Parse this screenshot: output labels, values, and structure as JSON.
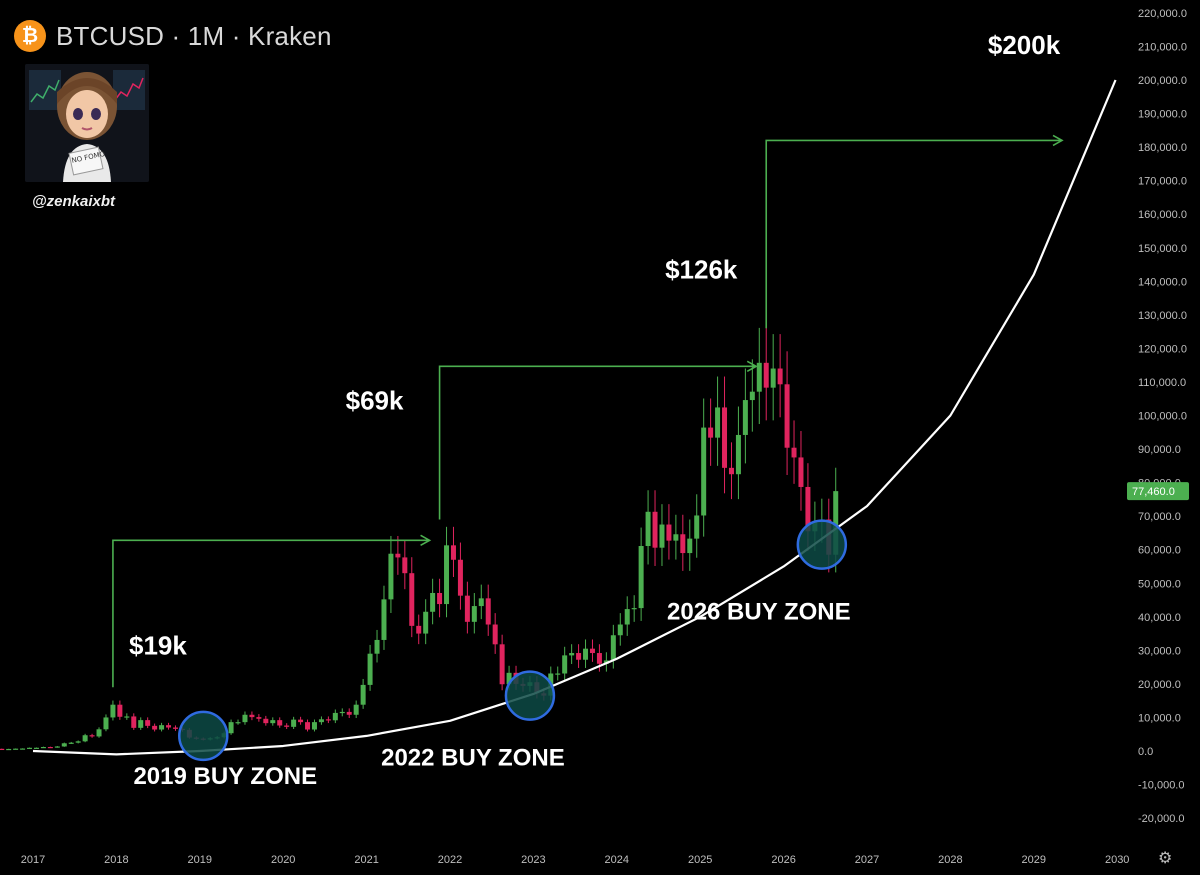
{
  "header": {
    "title": "BTCUSD · 1M · Kraken",
    "logo_letter": "₿"
  },
  "author": {
    "handle": "@zenkaixbt",
    "avatar_sign": "NO FOMO"
  },
  "colors": {
    "up": "#4caf50",
    "down": "#e0245e",
    "curve": "#ffffff",
    "arrow": "#4caf50",
    "zone_fill": "#0d4a45",
    "zone_stroke": "#2f6be0",
    "price_tag": "#4caf50"
  },
  "chart_data": {
    "type": "candlestick",
    "title": "BTCUSD · 1M · Kraken",
    "y_axis": {
      "min": -20000,
      "max": 220000,
      "step": 10000,
      "tick_labels": [
        "-20,000.0",
        "-10,000.0",
        "0.0",
        "10,000.0",
        "20,000.0",
        "30,000.0",
        "40,000.0",
        "50,000.0",
        "60,000.0",
        "70,000.0",
        "80,000.0",
        "90,000.0",
        "100,000.0",
        "110,000.0",
        "120,000.0",
        "130,000.0",
        "140,000.0",
        "150,000.0",
        "160,000.0",
        "170,000.0",
        "180,000.0",
        "190,000.0",
        "200,000.0",
        "210,000.0",
        "220,000.0"
      ]
    },
    "x_axis": {
      "min": 2017,
      "max": 2030,
      "tick_labels": [
        "2017",
        "2018",
        "2019",
        "2020",
        "2021",
        "2022",
        "2023",
        "2024",
        "2025",
        "2026",
        "2027",
        "2028",
        "2029",
        "2030"
      ]
    },
    "current_price": {
      "value": 77460,
      "label": "77,460.0"
    },
    "start": "2016-01",
    "closes": [
      430,
      440,
      420,
      450,
      530,
      670,
      650,
      575,
      610,
      700,
      740,
      960,
      970,
      1190,
      1080,
      1350,
      2300,
      2480,
      2880,
      4700,
      4340,
      6470,
      10000,
      13800,
      10200,
      10300,
      6900,
      9200,
      7500,
      6400,
      7700,
      7000,
      6600,
      6300,
      4000,
      3700,
      3450,
      3800,
      4100,
      5300,
      8600,
      8600,
      10800,
      10100,
      9600,
      8300,
      9200,
      7600,
      7200,
      9350,
      8600,
      6400,
      8600,
      9450,
      9150,
      11350,
      11650,
      10800,
      13800,
      19700,
      29000,
      33100,
      45200,
      58800,
      57700,
      53000,
      37300,
      35000,
      41500,
      47100,
      43800,
      61300,
      57000,
      46300,
      38500,
      43200,
      45500,
      37700,
      31800,
      19900,
      23300,
      20000,
      19400,
      20500,
      17200,
      16500,
      23100,
      23100,
      28500,
      29200,
      27200,
      30500,
      29200,
      26000,
      27000,
      34500,
      37700,
      42300,
      42600,
      61100,
      71300,
      60600,
      67500,
      62700,
      64600,
      59000,
      63300,
      70200,
      96400,
      93400,
      102400,
      84400,
      82500,
      94200,
      104600,
      107100,
      115700,
      108300,
      114000,
      109300,
      90400,
      87500,
      78700,
      65500,
      68200,
      69000,
      58500,
      77460
    ],
    "annotations": [
      {
        "label": "$19k",
        "value": 19000
      },
      {
        "label": "$69k",
        "value": 69000
      },
      {
        "label": "$126k",
        "value": 126000
      },
      {
        "label": "$200k",
        "value": 200000
      },
      {
        "label": "2019 BUY ZONE"
      },
      {
        "label": "2022 BUY ZONE"
      },
      {
        "label": "2026 BUY ZONE"
      }
    ],
    "projection_peak": {
      "label": "$200k",
      "value": 200000,
      "date": "2029-06"
    },
    "support_curve": [
      {
        "x": 2017.0,
        "y": 0
      },
      {
        "x": 2018.0,
        "y": -1000
      },
      {
        "x": 2019.0,
        "y": 0
      },
      {
        "x": 2020.0,
        "y": 1500
      },
      {
        "x": 2021.0,
        "y": 4500
      },
      {
        "x": 2022.0,
        "y": 9000
      },
      {
        "x": 2023.0,
        "y": 17000
      },
      {
        "x": 2024.0,
        "y": 27500
      },
      {
        "x": 2025.0,
        "y": 40000
      },
      {
        "x": 2026.0,
        "y": 55000
      },
      {
        "x": 2027.0,
        "y": 73000
      },
      {
        "x": 2028.0,
        "y": 100000
      },
      {
        "x": 2029.0,
        "y": 142000
      },
      {
        "x": 2029.98,
        "y": 200000
      }
    ],
    "tops": [
      {
        "date": "2017-12",
        "value": 19000,
        "label": "$19k"
      },
      {
        "date": "2021-11",
        "value": 69000,
        "label": "$69k"
      },
      {
        "date": "2025-10",
        "value": 126000,
        "label": "$126k"
      }
    ],
    "buy_zones": [
      {
        "date": "2019-01",
        "value": 4500,
        "label": "2019 BUY ZONE"
      },
      {
        "date": "2022-12",
        "value": 16500,
        "label": "2022 BUY ZONE"
      },
      {
        "date": "2026-06",
        "value": 61500,
        "label": "2026 BUY ZONE"
      }
    ]
  }
}
